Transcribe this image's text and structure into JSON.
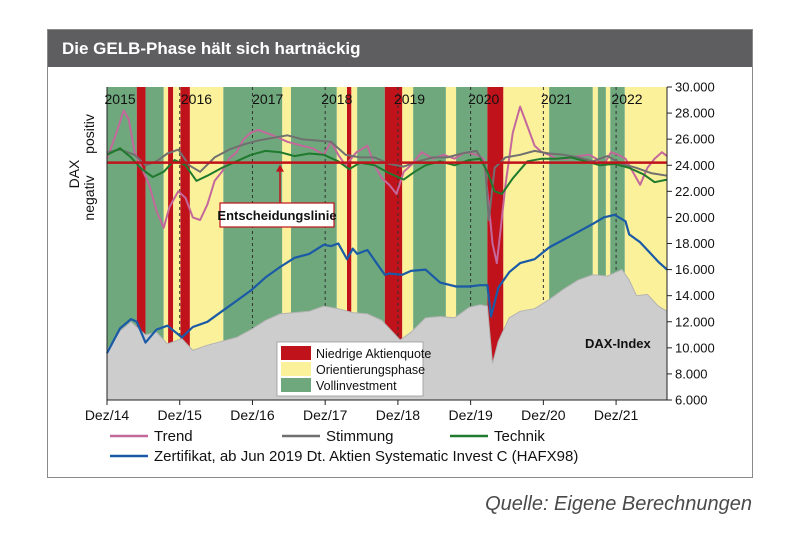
{
  "title": "Die GELB-Phase hält sich hartnäckig",
  "source": "Quelle: Eigene Berechnungen",
  "colors": {
    "title_bg": "#5e5e60",
    "red_phase": "#c0121b",
    "yellow_phase": "#fbf19a",
    "green_phase": "#6fa87c",
    "trend": "#c4689c",
    "stimmung": "#707070",
    "technik": "#1f7a2e",
    "zertifikat": "#1a5aa6",
    "dax_area": "#cdcdcd",
    "decision_line": "#c0121b"
  },
  "chart_data": {
    "type": "line",
    "title": "Die GELB-Phase hält sich hartnäckig",
    "x_tick_labels": [
      "Dez/14",
      "Dez/15",
      "Dez/16",
      "Dez/17",
      "Dez/18",
      "Dez/19",
      "Dez/20",
      "Dez/21"
    ],
    "year_labels": [
      "2015",
      "2016",
      "2017",
      "2018",
      "2019",
      "2020",
      "2021",
      "2022"
    ],
    "xlim": [
      2014.92,
      2022.62
    ],
    "ylim": [
      6000,
      30000
    ],
    "y_ticks": [
      6000,
      8000,
      10000,
      12000,
      14000,
      16000,
      18000,
      20000,
      22000,
      24000,
      26000,
      28000,
      30000
    ],
    "y_tick_labels": [
      "6.000",
      "8.000",
      "10.000",
      "12.000",
      "14.000",
      "16.000",
      "18.000",
      "20.000",
      "22.000",
      "24.000",
      "26.000",
      "28.000",
      "30.000"
    ],
    "indicator_axis": {
      "title": "DAX",
      "positive_label": "positiv",
      "negative_label": "negativ"
    },
    "decision_line": {
      "label": "Entscheidungslinie",
      "value": 24200
    },
    "dax_label": "DAX-Index",
    "phases": [
      {
        "start": 2014.92,
        "end": 2015.33,
        "phase": "green"
      },
      {
        "start": 2015.33,
        "end": 2015.45,
        "phase": "red"
      },
      {
        "start": 2015.45,
        "end": 2015.7,
        "phase": "green"
      },
      {
        "start": 2015.7,
        "end": 2015.76,
        "phase": "yellow"
      },
      {
        "start": 2015.76,
        "end": 2015.83,
        "phase": "red"
      },
      {
        "start": 2015.83,
        "end": 2015.93,
        "phase": "yellow"
      },
      {
        "start": 2015.93,
        "end": 2016.06,
        "phase": "red"
      },
      {
        "start": 2016.06,
        "end": 2016.52,
        "phase": "yellow"
      },
      {
        "start": 2016.52,
        "end": 2017.33,
        "phase": "green"
      },
      {
        "start": 2017.33,
        "end": 2017.45,
        "phase": "yellow"
      },
      {
        "start": 2017.45,
        "end": 2018.08,
        "phase": "green"
      },
      {
        "start": 2018.08,
        "end": 2018.22,
        "phase": "yellow"
      },
      {
        "start": 2018.22,
        "end": 2018.28,
        "phase": "red"
      },
      {
        "start": 2018.28,
        "end": 2018.36,
        "phase": "yellow"
      },
      {
        "start": 2018.36,
        "end": 2018.74,
        "phase": "green"
      },
      {
        "start": 2018.74,
        "end": 2018.98,
        "phase": "red"
      },
      {
        "start": 2018.98,
        "end": 2019.13,
        "phase": "yellow"
      },
      {
        "start": 2019.13,
        "end": 2019.58,
        "phase": "green"
      },
      {
        "start": 2019.58,
        "end": 2019.72,
        "phase": "yellow"
      },
      {
        "start": 2019.72,
        "end": 2020.15,
        "phase": "green"
      },
      {
        "start": 2020.15,
        "end": 2020.37,
        "phase": "red"
      },
      {
        "start": 2020.37,
        "end": 2021.0,
        "phase": "yellow"
      },
      {
        "start": 2021.0,
        "end": 2021.6,
        "phase": "green"
      },
      {
        "start": 2021.6,
        "end": 2021.67,
        "phase": "yellow"
      },
      {
        "start": 2021.67,
        "end": 2021.78,
        "phase": "green"
      },
      {
        "start": 2021.78,
        "end": 2021.84,
        "phase": "yellow"
      },
      {
        "start": 2021.84,
        "end": 2022.04,
        "phase": "green"
      },
      {
        "start": 2022.04,
        "end": 2022.62,
        "phase": "yellow"
      }
    ],
    "phase_legend": [
      {
        "key": "red",
        "label": "Niedrige Aktienquote"
      },
      {
        "key": "yellow",
        "label": "Orientierungsphase"
      },
      {
        "key": "green",
        "label": "Vollinvestment"
      }
    ],
    "series": [
      {
        "name": "Trend",
        "color": "#c4689c",
        "x": [
          2014.92,
          2015.05,
          2015.15,
          2015.22,
          2015.3,
          2015.38,
          2015.5,
          2015.6,
          2015.7,
          2015.78,
          2015.9,
          2016.0,
          2016.1,
          2016.2,
          2016.3,
          2016.4,
          2016.5,
          2016.6,
          2016.7,
          2016.8,
          2016.9,
          2017.0,
          2017.2,
          2017.4,
          2017.6,
          2017.75,
          2017.9,
          2018.0,
          2018.1,
          2018.2,
          2018.35,
          2018.5,
          2018.6,
          2018.7,
          2018.8,
          2018.9,
          2019.0,
          2019.1,
          2019.25,
          2019.4,
          2019.55,
          2019.7,
          2019.85,
          2020.0,
          2020.1,
          2020.17,
          2020.22,
          2020.28,
          2020.33,
          2020.4,
          2020.5,
          2020.6,
          2020.7,
          2020.8,
          2020.9,
          2021.0,
          2021.1,
          2021.25,
          2021.4,
          2021.55,
          2021.65,
          2021.75,
          2021.85,
          2021.95,
          2022.05,
          2022.15,
          2022.25,
          2022.35,
          2022.45,
          2022.55,
          2022.62
        ],
        "values": [
          24500,
          26500,
          28200,
          27500,
          25000,
          24000,
          22500,
          20500,
          19200,
          20800,
          22000,
          21500,
          20000,
          19800,
          21000,
          22800,
          23500,
          24500,
          25000,
          26000,
          26500,
          26700,
          26300,
          25800,
          25500,
          25300,
          24800,
          25800,
          24800,
          24000,
          25000,
          25500,
          24000,
          23000,
          22500,
          21800,
          23500,
          24000,
          25000,
          24500,
          24800,
          24500,
          25000,
          24800,
          24500,
          21000,
          18000,
          16500,
          19000,
          22500,
          26500,
          28500,
          27000,
          25500,
          25000,
          24800,
          24500,
          24500,
          24700,
          24800,
          24500,
          24000,
          25000,
          24800,
          24500,
          23500,
          22500,
          23800,
          24500,
          25000,
          24700
        ]
      },
      {
        "name": "Stimmung",
        "color": "#707070",
        "x": [
          2014.92,
          2015.1,
          2015.3,
          2015.45,
          2015.6,
          2015.75,
          2015.9,
          2016.05,
          2016.2,
          2016.4,
          2016.6,
          2016.8,
          2017.0,
          2017.2,
          2017.4,
          2017.6,
          2017.8,
          2018.0,
          2018.2,
          2018.4,
          2018.6,
          2018.8,
          2019.0,
          2019.2,
          2019.4,
          2019.6,
          2019.8,
          2020.0,
          2020.12,
          2020.17,
          2020.25,
          2020.4,
          2020.6,
          2020.8,
          2021.0,
          2021.2,
          2021.4,
          2021.6,
          2021.8,
          2022.0,
          2022.2,
          2022.4,
          2022.62
        ],
        "values": [
          25000,
          25200,
          24800,
          24000,
          24300,
          24900,
          25200,
          24000,
          23500,
          24600,
          25200,
          25600,
          25900,
          26100,
          26300,
          26000,
          25900,
          25800,
          24800,
          24600,
          24600,
          24100,
          23900,
          24300,
          24600,
          24600,
          24900,
          25100,
          24000,
          19800,
          23800,
          24600,
          24800,
          25100,
          24900,
          24800,
          24600,
          24300,
          24700,
          24100,
          23800,
          23400,
          23200
        ]
      },
      {
        "name": "Technik",
        "color": "#1f7a2e",
        "x": [
          2014.92,
          2015.1,
          2015.25,
          2015.4,
          2015.55,
          2015.7,
          2015.85,
          2016.0,
          2016.15,
          2016.3,
          2016.5,
          2016.7,
          2016.9,
          2017.1,
          2017.3,
          2017.5,
          2017.7,
          2017.9,
          2018.1,
          2018.25,
          2018.4,
          2018.6,
          2018.8,
          2019.0,
          2019.15,
          2019.3,
          2019.5,
          2019.7,
          2019.9,
          2020.05,
          2020.15,
          2020.25,
          2020.35,
          2020.5,
          2020.7,
          2020.9,
          2021.1,
          2021.3,
          2021.5,
          2021.7,
          2021.9,
          2022.1,
          2022.3,
          2022.45,
          2022.62
        ],
        "values": [
          24800,
          25300,
          24600,
          23700,
          23100,
          23500,
          24400,
          24000,
          22800,
          23200,
          23800,
          24300,
          24800,
          25100,
          25000,
          24700,
          24900,
          24800,
          24300,
          23700,
          24200,
          24000,
          23400,
          22900,
          23500,
          24000,
          24300,
          24000,
          24400,
          24500,
          23500,
          22000,
          21800,
          23000,
          24300,
          24500,
          24500,
          24600,
          24300,
          24000,
          24100,
          23800,
          23300,
          22700,
          22900
        ]
      },
      {
        "name": "Zertifikat, ab Jun 2019 Dt. Aktien Systematic Invest C (HAFX98)",
        "color": "#1a5aa6",
        "x": [
          2014.92,
          2015.1,
          2015.25,
          2015.33,
          2015.45,
          2015.6,
          2015.75,
          2015.95,
          2016.1,
          2016.3,
          2016.5,
          2016.7,
          2016.9,
          2017.1,
          2017.3,
          2017.5,
          2017.7,
          2017.9,
          2018.0,
          2018.1,
          2018.22,
          2018.3,
          2018.36,
          2018.5,
          2018.74,
          2018.8,
          2018.98,
          2019.1,
          2019.3,
          2019.5,
          2019.72,
          2019.9,
          2020.05,
          2020.15,
          2020.2,
          2020.3,
          2020.45,
          2020.6,
          2020.8,
          2021.0,
          2021.2,
          2021.4,
          2021.6,
          2021.75,
          2021.9,
          2022.05,
          2022.1,
          2022.25,
          2022.4,
          2022.5,
          2022.62
        ],
        "values": [
          9600,
          11500,
          12200,
          12000,
          10400,
          11400,
          11700,
          10800,
          11600,
          12000,
          12800,
          13600,
          14400,
          15400,
          16200,
          16900,
          17200,
          17900,
          17800,
          18000,
          16800,
          17600,
          17200,
          17500,
          15600,
          15700,
          15600,
          15900,
          16000,
          15000,
          14700,
          14700,
          14800,
          14800,
          12400,
          14600,
          15800,
          16500,
          16800,
          17700,
          18300,
          18900,
          19500,
          20000,
          20200,
          19700,
          18700,
          18100,
          17200,
          16600,
          16000
        ]
      },
      {
        "name": "DAX-Index",
        "color": "#cdcdcd",
        "x": [
          2014.92,
          2015.1,
          2015.25,
          2015.45,
          2015.6,
          2015.75,
          2015.95,
          2016.1,
          2016.3,
          2016.5,
          2016.7,
          2016.9,
          2017.1,
          2017.3,
          2017.5,
          2017.7,
          2017.9,
          2018.1,
          2018.3,
          2018.5,
          2018.7,
          2018.95,
          2019.1,
          2019.3,
          2019.5,
          2019.7,
          2019.9,
          2020.05,
          2020.15,
          2020.22,
          2020.3,
          2020.45,
          2020.6,
          2020.8,
          2021.0,
          2021.2,
          2021.4,
          2021.6,
          2021.8,
          2022.0,
          2022.1,
          2022.2,
          2022.35,
          2022.5,
          2022.62
        ],
        "values": [
          9800,
          11300,
          12000,
          11000,
          11200,
          10300,
          10700,
          9800,
          10200,
          10500,
          10800,
          11400,
          12100,
          12600,
          12700,
          12800,
          13200,
          13000,
          12700,
          12600,
          12100,
          10600,
          11200,
          12300,
          12400,
          12300,
          13100,
          13300,
          13200,
          8800,
          10500,
          12300,
          12800,
          13000,
          13700,
          14500,
          15200,
          15600,
          15500,
          16000,
          15200,
          14000,
          14100,
          13200,
          12800
        ]
      }
    ]
  }
}
